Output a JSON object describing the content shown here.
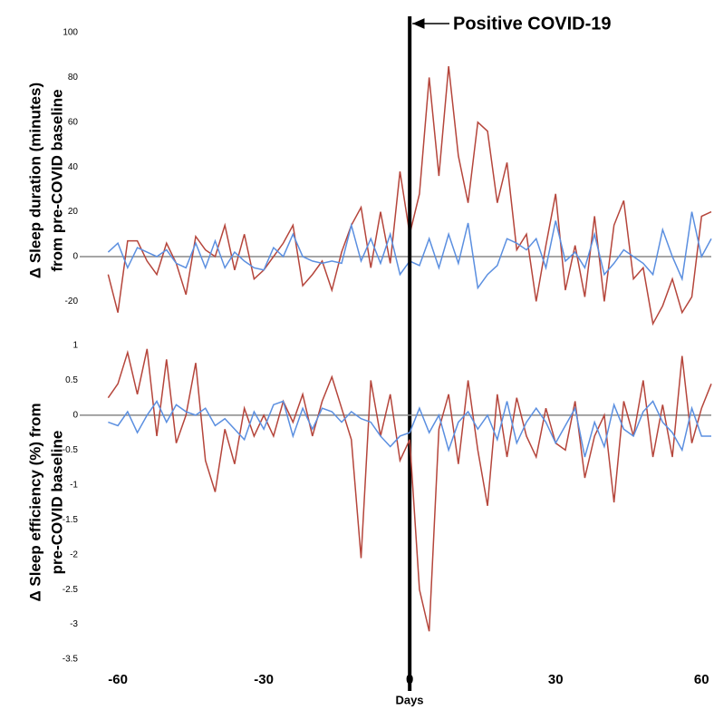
{
  "chart_data": [
    {
      "type": "line",
      "ylabel": [
        "Δ Sleep duration (minutes)",
        "from pre-COVID baseline"
      ],
      "annotation": {
        "text": "Positive COVID-19",
        "x": 0
      },
      "reference_line": 0,
      "xlim": [
        -63,
        62
      ],
      "ylim": [
        -32,
        100
      ],
      "yticks": [
        -20,
        0,
        20,
        40,
        60,
        80,
        100
      ],
      "x": [
        -62,
        -60,
        -58,
        -56,
        -54,
        -52,
        -50,
        -48,
        -46,
        -44,
        -42,
        -40,
        -38,
        -36,
        -34,
        -32,
        -30,
        -28,
        -26,
        -24,
        -22,
        -20,
        -18,
        -16,
        -14,
        -12,
        -10,
        -8,
        -6,
        -4,
        -2,
        0,
        2,
        4,
        6,
        8,
        10,
        12,
        14,
        16,
        18,
        20,
        22,
        24,
        26,
        28,
        30,
        32,
        34,
        36,
        38,
        40,
        42,
        44,
        46,
        48,
        50,
        52,
        54,
        56,
        58,
        60,
        62
      ],
      "series": [
        {
          "color": "#b5453b",
          "values": [
            -8,
            -25,
            7,
            7,
            -2,
            -8,
            6,
            -3,
            -17,
            9,
            3,
            0,
            14,
            -6,
            10,
            -10,
            -6,
            0,
            6,
            14,
            -13,
            -8,
            -2,
            -15,
            2,
            14,
            22,
            -5,
            20,
            -3,
            38,
            10,
            28,
            80,
            36,
            85,
            45,
            24,
            60,
            56,
            24,
            42,
            3,
            10,
            -20,
            5,
            28,
            -15,
            5,
            -18,
            18,
            -20,
            14,
            25,
            -10,
            -5,
            -30,
            -22,
            -10,
            -25,
            -18,
            18,
            20
          ]
        },
        {
          "color": "#5b8fe0",
          "values": [
            2,
            6,
            -5,
            4,
            2,
            0,
            3,
            -3,
            -5,
            6,
            -5,
            7,
            -5,
            2,
            -2,
            -5,
            -6,
            4,
            0,
            10,
            0,
            -2,
            -3,
            -2,
            -3,
            14,
            -2,
            8,
            -3,
            10,
            -8,
            -2,
            -4,
            8,
            -5,
            10,
            -3,
            15,
            -14,
            -8,
            -4,
            8,
            6,
            3,
            8,
            -5,
            16,
            -2,
            2,
            -5,
            10,
            -8,
            -3,
            3,
            0,
            -3,
            -8,
            12,
            0,
            -10,
            20,
            0,
            8
          ]
        }
      ]
    },
    {
      "type": "line",
      "ylabel": [
        "Δ Sleep efficiency (%)  from",
        "pre-COVID baseline"
      ],
      "xlabel": "Days",
      "reference_line": 0,
      "xlim": [
        -63,
        62
      ],
      "xticks": [
        -60,
        -30,
        0,
        30,
        60
      ],
      "ylim": [
        -3.5,
        1
      ],
      "yticks": [
        -3.5,
        -3,
        -2.5,
        -2,
        -1.5,
        -1,
        -0.5,
        0,
        0.5,
        1
      ],
      "x": [
        -62,
        -60,
        -58,
        -56,
        -54,
        -52,
        -50,
        -48,
        -46,
        -44,
        -42,
        -40,
        -38,
        -36,
        -34,
        -32,
        -30,
        -28,
        -26,
        -24,
        -22,
        -20,
        -18,
        -16,
        -14,
        -12,
        -10,
        -8,
        -6,
        -4,
        -2,
        0,
        2,
        4,
        6,
        8,
        10,
        12,
        14,
        16,
        18,
        20,
        22,
        24,
        26,
        28,
        30,
        32,
        34,
        36,
        38,
        40,
        42,
        44,
        46,
        48,
        50,
        52,
        54,
        56,
        58,
        60,
        62
      ],
      "series": [
        {
          "color": "#b5453b",
          "values": [
            0.25,
            0.45,
            0.9,
            0.3,
            0.95,
            -0.3,
            0.8,
            -0.4,
            0,
            0.75,
            -0.65,
            -1.1,
            -0.2,
            -0.7,
            0.1,
            -0.3,
            0,
            -0.3,
            0.2,
            -0.1,
            0.3,
            -0.3,
            0.2,
            0.55,
            0.1,
            -0.35,
            -2.05,
            0.5,
            -0.3,
            0.3,
            -0.65,
            -0.35,
            -2.5,
            -3.1,
            -0.2,
            0.3,
            -0.7,
            0.5,
            -0.5,
            -1.3,
            0.3,
            -0.6,
            0.25,
            -0.3,
            -0.6,
            0.1,
            -0.4,
            -0.5,
            0.2,
            -0.9,
            -0.3,
            0,
            -1.25,
            0.2,
            -0.3,
            0.5,
            -0.6,
            0.15,
            -0.6,
            0.85,
            -0.4,
            0.1,
            0.45
          ]
        },
        {
          "color": "#5b8fe0",
          "values": [
            -0.1,
            -0.15,
            0.05,
            -0.25,
            0,
            0.2,
            -0.1,
            0.15,
            0.05,
            0,
            0.1,
            -0.15,
            -0.05,
            -0.2,
            -0.35,
            0.05,
            -0.2,
            0.15,
            0.2,
            -0.3,
            0.1,
            -0.2,
            0.1,
            0.05,
            -0.1,
            0.05,
            -0.05,
            -0.1,
            -0.3,
            -0.45,
            -0.3,
            -0.25,
            0.1,
            -0.25,
            0,
            -0.5,
            -0.1,
            0.05,
            -0.2,
            0,
            -0.35,
            0.2,
            -0.4,
            -0.1,
            0.1,
            -0.1,
            -0.4,
            -0.15,
            0.1,
            -0.6,
            -0.1,
            -0.45,
            0.15,
            -0.2,
            -0.3,
            0.05,
            0.2,
            -0.1,
            -0.25,
            -0.5,
            0.1,
            -0.3,
            -0.3
          ]
        }
      ]
    }
  ]
}
